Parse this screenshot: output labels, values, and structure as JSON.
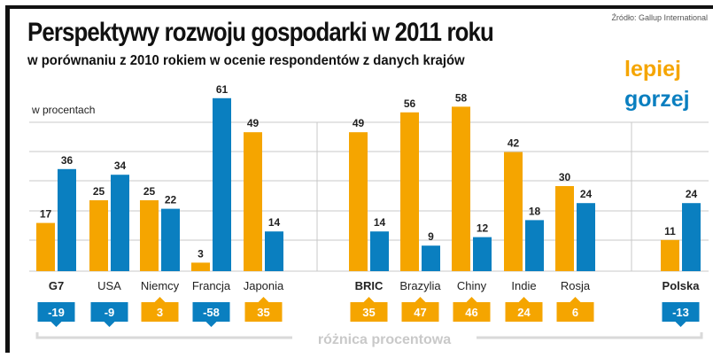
{
  "source": "Źródło: Gallup International",
  "title": "Perspektywy rozwoju gospodarki w 2011 roku",
  "subtitle": "w porównaniu z 2010 rokiem w ocenie respondentów z danych krajów",
  "legend": {
    "better": "lepiej",
    "worse": "gorzej"
  },
  "colors": {
    "better": "#f5a500",
    "worse": "#0a7fc0",
    "grid": "#cccccc",
    "text": "#222222"
  },
  "chart_data": {
    "type": "bar",
    "ylabel": "w procentach",
    "ylim": [
      0,
      70
    ],
    "grid": true,
    "categories": [
      "G7",
      "USA",
      "Niemcy",
      "Francja",
      "Japonia",
      "BRIC",
      "Brazylia",
      "Chiny",
      "Indie",
      "Rosja",
      "Polska"
    ],
    "bold_categories": [
      "G7",
      "BRIC",
      "Polska"
    ],
    "series": [
      {
        "name": "lepiej",
        "values": [
          17,
          25,
          25,
          3,
          49,
          49,
          56,
          58,
          42,
          30,
          11
        ]
      },
      {
        "name": "gorzej",
        "values": [
          36,
          34,
          22,
          61,
          14,
          14,
          9,
          12,
          18,
          24,
          24
        ]
      }
    ],
    "difference": {
      "label": "różnica procentowa",
      "values": [
        "-19",
        "-9",
        "3",
        "-58",
        "35",
        "35",
        "47",
        "46",
        "24",
        "6",
        "-13"
      ]
    }
  }
}
